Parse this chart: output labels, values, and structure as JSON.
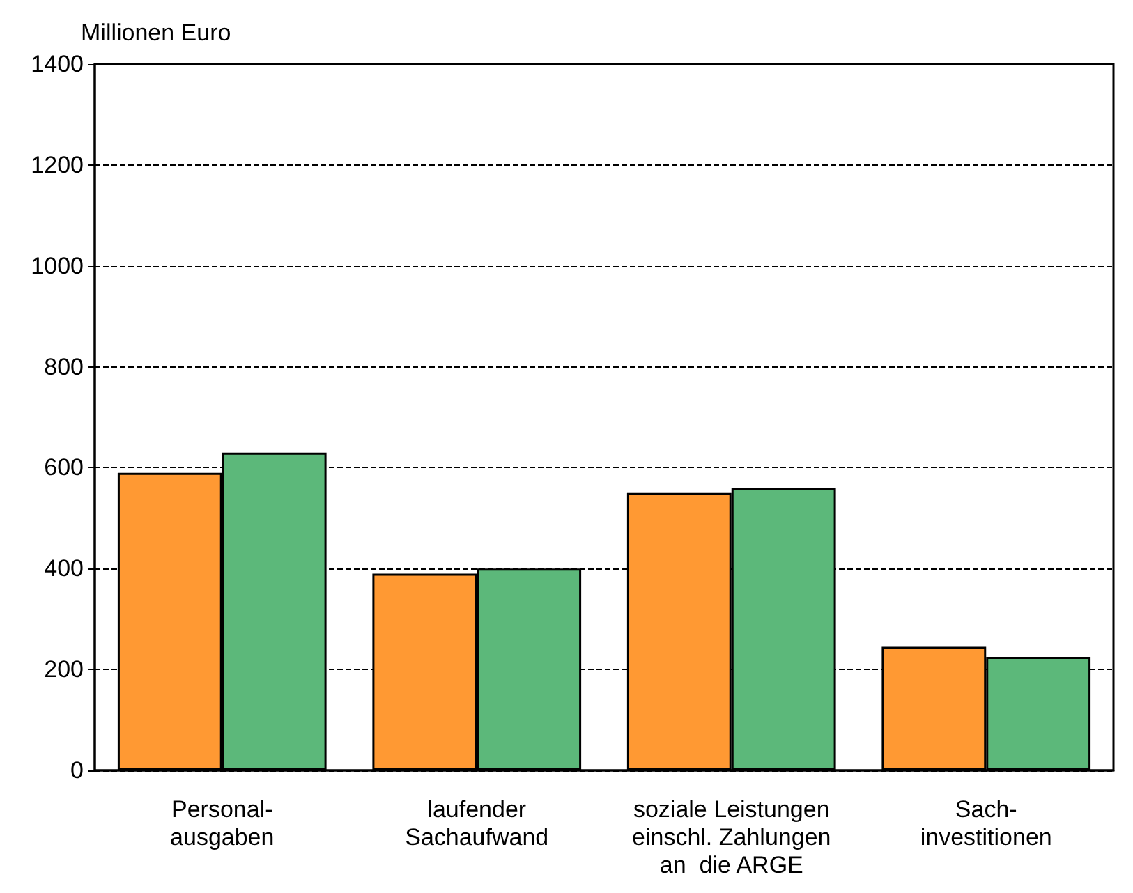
{
  "chart_data": {
    "type": "bar",
    "ylabel": "Millionen Euro",
    "categories": [
      "Personal-\nausgaben",
      "laufender\nSachaufwand",
      "soziale Leistungen\neinschl. Zahlungen\nan  die ARGE",
      "Sach-\ninvestitionen"
    ],
    "series": [
      {
        "color": "#ff9933",
        "values": [
          590,
          390,
          550,
          245
        ]
      },
      {
        "color": "#5cb87a",
        "values": [
          630,
          400,
          560,
          225
        ]
      }
    ],
    "ylim": [
      0,
      1400
    ],
    "yticks": [
      0,
      200,
      400,
      600,
      800,
      1000,
      1200,
      1400
    ],
    "grid": "y"
  }
}
